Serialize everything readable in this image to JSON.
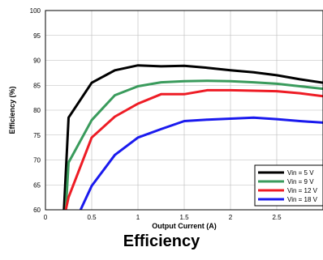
{
  "caption": "Efficiency",
  "chart_data": {
    "type": "line",
    "title": "",
    "xlabel": "Output Current (A)",
    "ylabel": "Efficiency (%)",
    "xlim": [
      0,
      3
    ],
    "ylim": [
      60,
      100
    ],
    "xticks": [
      0,
      0.5,
      1,
      1.5,
      2,
      2.5
    ],
    "xtick_labels": [
      "0",
      "0.5",
      "1",
      "1.5",
      "2",
      "2.5"
    ],
    "yticks": [
      60,
      65,
      70,
      75,
      80,
      85,
      90,
      95,
      100
    ],
    "ytick_labels": [
      "60",
      "65",
      "70",
      "75",
      "80",
      "85",
      "90",
      "95",
      "100"
    ],
    "grid": true,
    "legend_position": "bottom-right",
    "series": [
      {
        "name": "Vin = 5 V",
        "color": "#000000",
        "points": [
          [
            0.2,
            60
          ],
          [
            0.25,
            78.5
          ],
          [
            0.5,
            85.5
          ],
          [
            0.75,
            88
          ],
          [
            1,
            89
          ],
          [
            1.25,
            88.8
          ],
          [
            1.5,
            88.9
          ],
          [
            1.75,
            88.5
          ],
          [
            2,
            88
          ],
          [
            2.25,
            87.6
          ],
          [
            2.5,
            87
          ],
          [
            2.75,
            86.2
          ],
          [
            3,
            85.5
          ]
        ]
      },
      {
        "name": "Vin = 9 V",
        "color": "#3a9b5c",
        "points": [
          [
            0.22,
            60
          ],
          [
            0.25,
            69.5
          ],
          [
            0.5,
            78
          ],
          [
            0.75,
            83
          ],
          [
            1,
            84.8
          ],
          [
            1.25,
            85.6
          ],
          [
            1.5,
            85.8
          ],
          [
            1.75,
            85.9
          ],
          [
            2,
            85.8
          ],
          [
            2.25,
            85.6
          ],
          [
            2.5,
            85.3
          ],
          [
            2.75,
            84.8
          ],
          [
            3,
            84.3
          ]
        ]
      },
      {
        "name": "Vin = 12 V",
        "color": "#ee1c25",
        "points": [
          [
            0.22,
            60
          ],
          [
            0.25,
            62.5
          ],
          [
            0.5,
            74.5
          ],
          [
            0.75,
            78.7
          ],
          [
            1,
            81.3
          ],
          [
            1.25,
            83.2
          ],
          [
            1.5,
            83.2
          ],
          [
            1.75,
            84
          ],
          [
            2,
            84
          ],
          [
            2.25,
            83.9
          ],
          [
            2.5,
            83.8
          ],
          [
            2.75,
            83.4
          ],
          [
            3,
            82.8
          ]
        ]
      },
      {
        "name": "Vin = 18 V",
        "color": "#1a1aee",
        "points": [
          [
            0.38,
            60
          ],
          [
            0.5,
            64.8
          ],
          [
            0.75,
            71
          ],
          [
            1,
            74.5
          ],
          [
            1.25,
            76.2
          ],
          [
            1.5,
            77.8
          ],
          [
            1.75,
            78.1
          ],
          [
            2,
            78.3
          ],
          [
            2.25,
            78.5
          ],
          [
            2.5,
            78.2
          ],
          [
            2.75,
            77.8
          ],
          [
            3,
            77.5
          ]
        ]
      }
    ]
  }
}
